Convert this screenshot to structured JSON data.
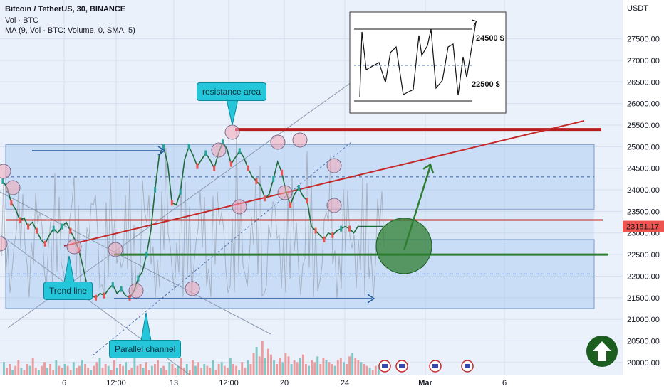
{
  "header": {
    "symbol_line": "Bitcoin / TetherUS, 30, BINANCE",
    "vol_line": "Vol · BTC",
    "ma_line": "MA (9, Vol · BTC: Volume, 0, SMA, 5)"
  },
  "callouts": {
    "resistance": "resistance area",
    "trend": "Trend line",
    "channel": "Parallel channel"
  },
  "inset": {
    "upper_label": "24500 $",
    "lower_label": "22500 $"
  },
  "chart_data": {
    "type": "line",
    "title": "Bitcoin / TetherUS, 30, BINANCE",
    "ylabel": "USDT",
    "ylim": [
      19700,
      28400
    ],
    "y_ticks": [
      20000,
      20500,
      21000,
      21500,
      22000,
      22500,
      23000,
      23500,
      24000,
      24500,
      25000,
      25500,
      26000,
      26500,
      27000,
      27500
    ],
    "y_tick_labels": [
      "20000.00",
      "20500.00",
      "21000.00",
      "21500.00",
      "22000.00",
      "22500.00",
      "23000.00",
      "23500.00",
      "24000.00",
      "24500.00",
      "25000.00",
      "25500.00",
      "26000.00",
      "26500.00",
      "27000.00",
      "27500.00"
    ],
    "x_ticks": [
      "6",
      "12:00",
      "13",
      "12:00",
      "20",
      "24",
      "Mar",
      "6"
    ],
    "last_price": 23151.17,
    "last_price_label": "23151.17",
    "series": [
      {
        "x": [
          0,
          1,
          2,
          3,
          4,
          5,
          6,
          7,
          8,
          9,
          10,
          11,
          12,
          13,
          14,
          15,
          16,
          17,
          18,
          19,
          20,
          21,
          22,
          23,
          24,
          25,
          26,
          27,
          28,
          29,
          30,
          31,
          32,
          33,
          34,
          35,
          36,
          37,
          38,
          39,
          40,
          41,
          42,
          43,
          44,
          45,
          46,
          47,
          48,
          49,
          50,
          51,
          52,
          53,
          54,
          55,
          56,
          57,
          58,
          59,
          60,
          61,
          62,
          63,
          64,
          65,
          66,
          67,
          68,
          69,
          70,
          71,
          72,
          73,
          74,
          75,
          76,
          77,
          78,
          79,
          80,
          81,
          82,
          83,
          84,
          85,
          86,
          87,
          88,
          89,
          90
        ],
        "values": [
          24200,
          24050,
          23700,
          23550,
          23300,
          23350,
          23150,
          23250,
          23050,
          22850,
          22750,
          22950,
          23100,
          23000,
          23150,
          23250,
          23050,
          22850,
          22600,
          22200,
          21750,
          21550,
          21500,
          21600,
          21550,
          21700,
          21800,
          21600,
          21700,
          21550,
          21500,
          21650,
          21950,
          22100,
          22500,
          23050,
          24000,
          24800,
          25000,
          24600,
          23700,
          23650,
          23950,
          24700,
          25000,
          24800,
          24550,
          24700,
          24850,
          24700,
          24500,
          24850,
          25100,
          24950,
          24600,
          24750,
          24900,
          24750,
          24500,
          24300,
          24200,
          24100,
          23800,
          23900,
          24250,
          24650,
          24400,
          23950,
          23650,
          23900,
          24050,
          23850,
          23750,
          23150,
          23050,
          22950,
          22850,
          23000,
          22950,
          23050,
          23100,
          23150,
          23100,
          23000,
          23151.17,
          23151.17,
          23151.17,
          23151.17,
          23151.17,
          23151.17,
          23151.17
        ]
      }
    ],
    "volume": [
      7,
      4,
      6,
      3,
      5,
      8,
      4,
      3,
      6,
      5,
      9,
      4,
      3,
      5,
      7,
      4,
      6,
      3,
      8,
      5,
      4,
      6,
      5,
      3,
      7,
      4,
      5,
      8,
      6,
      4,
      3,
      5,
      7,
      9,
      4,
      6,
      5,
      3,
      8,
      4,
      6,
      5,
      7,
      3,
      4,
      9,
      5,
      6,
      4,
      7,
      3,
      5,
      6,
      8,
      4,
      5,
      3,
      7,
      6,
      4,
      5,
      9,
      4,
      6,
      3,
      8,
      5,
      7,
      4,
      6,
      5,
      4,
      8,
      3,
      6,
      7,
      5,
      4,
      9,
      6,
      5,
      3,
      7,
      4,
      8,
      6,
      12,
      15,
      10,
      18,
      9,
      14,
      11,
      8,
      6,
      9,
      7,
      12,
      10,
      6,
      8,
      7,
      9,
      11,
      6,
      5,
      8,
      7,
      10,
      6,
      9,
      8,
      7,
      6,
      5,
      8,
      9,
      7,
      6,
      10,
      12,
      9,
      8,
      7,
      6,
      5,
      4,
      3,
      5,
      4
    ],
    "levels": [
      {
        "name": "resistance",
        "value": 25400
      },
      {
        "name": "mid",
        "value": 23300
      },
      {
        "name": "support",
        "value": 22500
      }
    ],
    "channel_bands": [
      {
        "top": 25050,
        "bottom": 23550
      },
      {
        "top": 22850,
        "bottom": 21250
      }
    ],
    "dashed_levels": [
      24300,
      22050
    ],
    "trend_line": {
      "start": [
        90,
        22700
      ],
      "end": [
        820,
        25600
      ]
    },
    "projection_arrow": {
      "from": [
        567,
        22600
      ],
      "to": [
        604,
        24550
      ]
    },
    "target_zone": {
      "x": 567,
      "y": 22700
    }
  }
}
